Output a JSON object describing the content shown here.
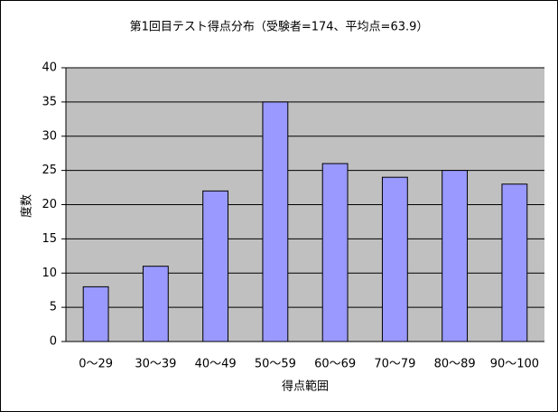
{
  "chart_data": {
    "type": "bar",
    "title": "第1回目テスト得点分布（受験者=174、平均点=63.9）",
    "xlabel": "得点範囲",
    "ylabel": "度数",
    "categories": [
      "0～29",
      "30～39",
      "40～49",
      "50～59",
      "60～69",
      "70～79",
      "80～89",
      "90～100"
    ],
    "values": [
      8,
      11,
      22,
      35,
      26,
      24,
      25,
      23
    ],
    "color": "#9999ff",
    "ylim": [
      0,
      40
    ],
    "yticks": [
      0,
      5,
      10,
      15,
      20,
      25,
      30,
      35,
      40
    ],
    "grid": true
  }
}
